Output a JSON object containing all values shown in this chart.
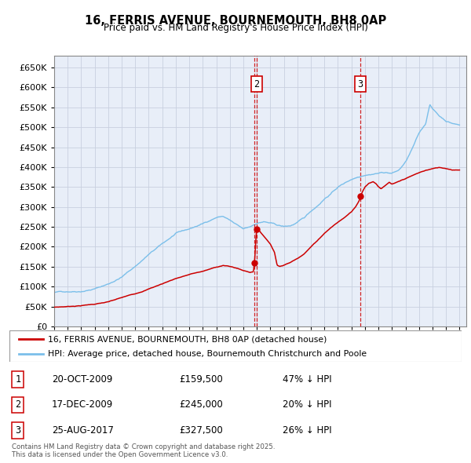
{
  "title": "16, FERRIS AVENUE, BOURNEMOUTH, BH8 0AP",
  "subtitle": "Price paid vs. HM Land Registry's House Price Index (HPI)",
  "legend_line1": "16, FERRIS AVENUE, BOURNEMOUTH, BH8 0AP (detached house)",
  "legend_line2": "HPI: Average price, detached house, Bournemouth Christchurch and Poole",
  "footer": "Contains HM Land Registry data © Crown copyright and database right 2025.\nThis data is licensed under the Open Government Licence v3.0.",
  "hpi_color": "#7bbfea",
  "price_color": "#cc0000",
  "vline_color": "#cc0000",
  "background_chart": "#e8eef8",
  "grid_color": "#c8d0e0",
  "ylim": [
    0,
    680000
  ],
  "yticks": [
    0,
    50000,
    100000,
    150000,
    200000,
    250000,
    300000,
    350000,
    400000,
    450000,
    500000,
    550000,
    600000,
    650000
  ],
  "transactions": [
    {
      "num": 1,
      "date_str": "20-OCT-2009",
      "year": 2009.8,
      "price": 159500,
      "pct": "47% ↓ HPI",
      "show_box": false
    },
    {
      "num": 2,
      "date_str": "17-DEC-2009",
      "year": 2009.97,
      "price": 245000,
      "pct": "20% ↓ HPI",
      "show_box": true
    },
    {
      "num": 3,
      "date_str": "25-AUG-2017",
      "year": 2017.64,
      "price": 327500,
      "pct": "26% ↓ HPI",
      "show_box": true
    }
  ],
  "xmin": 1995,
  "xmax": 2025.5,
  "hpi_anchors": [
    [
      1995.0,
      85000
    ],
    [
      1996.0,
      88000
    ],
    [
      1997.0,
      91000
    ],
    [
      1998.0,
      98000
    ],
    [
      1999.0,
      110000
    ],
    [
      2000.0,
      128000
    ],
    [
      2001.0,
      155000
    ],
    [
      2002.0,
      185000
    ],
    [
      2003.0,
      210000
    ],
    [
      2004.0,
      235000
    ],
    [
      2005.0,
      245000
    ],
    [
      2006.0,
      258000
    ],
    [
      2007.0,
      275000
    ],
    [
      2007.5,
      278000
    ],
    [
      2008.0,
      268000
    ],
    [
      2008.5,
      255000
    ],
    [
      2009.0,
      243000
    ],
    [
      2009.5,
      248000
    ],
    [
      2010.0,
      258000
    ],
    [
      2010.5,
      262000
    ],
    [
      2011.0,
      258000
    ],
    [
      2011.5,
      252000
    ],
    [
      2012.0,
      248000
    ],
    [
      2012.5,
      250000
    ],
    [
      2013.0,
      258000
    ],
    [
      2013.5,
      268000
    ],
    [
      2014.0,
      285000
    ],
    [
      2014.5,
      300000
    ],
    [
      2015.0,
      318000
    ],
    [
      2015.5,
      332000
    ],
    [
      2016.0,
      348000
    ],
    [
      2016.5,
      358000
    ],
    [
      2017.0,
      368000
    ],
    [
      2017.5,
      375000
    ],
    [
      2018.0,
      382000
    ],
    [
      2018.5,
      385000
    ],
    [
      2019.0,
      388000
    ],
    [
      2019.5,
      390000
    ],
    [
      2020.0,
      388000
    ],
    [
      2020.5,
      395000
    ],
    [
      2021.0,
      415000
    ],
    [
      2021.5,
      448000
    ],
    [
      2022.0,
      485000
    ],
    [
      2022.5,
      510000
    ],
    [
      2022.8,
      560000
    ],
    [
      2023.0,
      548000
    ],
    [
      2023.5,
      530000
    ],
    [
      2024.0,
      518000
    ],
    [
      2024.5,
      512000
    ],
    [
      2025.0,
      508000
    ]
  ],
  "price_anchors": [
    [
      1995.0,
      48000
    ],
    [
      1996.0,
      50000
    ],
    [
      1997.0,
      53000
    ],
    [
      1998.0,
      57000
    ],
    [
      1999.0,
      62000
    ],
    [
      2000.0,
      72000
    ],
    [
      2001.0,
      82000
    ],
    [
      2002.0,
      95000
    ],
    [
      2003.0,
      108000
    ],
    [
      2004.0,
      122000
    ],
    [
      2005.0,
      132000
    ],
    [
      2006.0,
      140000
    ],
    [
      2007.0,
      150000
    ],
    [
      2007.5,
      155000
    ],
    [
      2008.0,
      152000
    ],
    [
      2008.5,
      148000
    ],
    [
      2009.0,
      142000
    ],
    [
      2009.5,
      138000
    ],
    [
      2009.75,
      140000
    ],
    [
      2009.8,
      159500
    ],
    [
      2009.85,
      175000
    ],
    [
      2009.97,
      245000
    ],
    [
      2010.2,
      242000
    ],
    [
      2010.5,
      230000
    ],
    [
      2011.0,
      210000
    ],
    [
      2011.3,
      190000
    ],
    [
      2011.5,
      158000
    ],
    [
      2011.7,
      155000
    ],
    [
      2012.0,
      158000
    ],
    [
      2012.5,
      165000
    ],
    [
      2013.0,
      175000
    ],
    [
      2013.5,
      188000
    ],
    [
      2014.0,
      205000
    ],
    [
      2014.5,
      222000
    ],
    [
      2015.0,
      240000
    ],
    [
      2015.5,
      255000
    ],
    [
      2016.0,
      268000
    ],
    [
      2016.5,
      280000
    ],
    [
      2017.0,
      295000
    ],
    [
      2017.3,
      308000
    ],
    [
      2017.64,
      327500
    ],
    [
      2017.8,
      345000
    ],
    [
      2018.0,
      358000
    ],
    [
      2018.3,
      368000
    ],
    [
      2018.6,
      372000
    ],
    [
      2018.8,
      368000
    ],
    [
      2019.0,
      360000
    ],
    [
      2019.2,
      355000
    ],
    [
      2019.5,
      362000
    ],
    [
      2019.8,
      370000
    ],
    [
      2020.0,
      365000
    ],
    [
      2020.3,
      368000
    ],
    [
      2020.6,
      372000
    ],
    [
      2021.0,
      378000
    ],
    [
      2021.5,
      385000
    ],
    [
      2022.0,
      392000
    ],
    [
      2022.5,
      398000
    ],
    [
      2023.0,
      402000
    ],
    [
      2023.5,
      405000
    ],
    [
      2024.0,
      403000
    ],
    [
      2024.5,
      400000
    ],
    [
      2025.0,
      401000
    ]
  ]
}
